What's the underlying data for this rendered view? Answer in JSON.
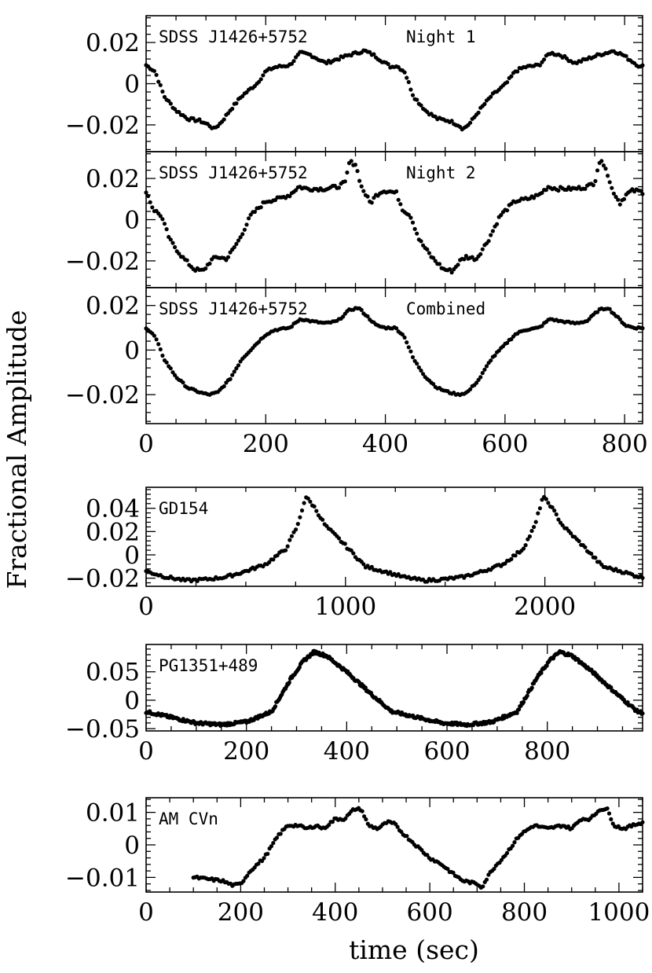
{
  "figure": {
    "ylabel": "Fractional Amplitude",
    "xlabel": "time (sec)"
  },
  "chart_data": [
    {
      "type": "scatter",
      "label_left": "SDSS J1426+5752",
      "label_right": "Night 1",
      "xlim": [
        0,
        830
      ],
      "ylim": [
        -0.033,
        0.033
      ],
      "xticks": [
        0,
        200,
        400,
        600,
        800
      ],
      "yticks": [
        -0.02,
        0,
        0.02
      ],
      "ytick_labels": [
        "−0.02",
        "0",
        "0.02"
      ],
      "show_xtick_labels": false,
      "period": 417,
      "curve": [
        [
          0,
          0.009
        ],
        [
          15,
          0.006
        ],
        [
          30,
          -0.006
        ],
        [
          50,
          -0.013
        ],
        [
          70,
          -0.017
        ],
        [
          90,
          -0.018
        ],
        [
          105,
          -0.02
        ],
        [
          113,
          -0.022
        ],
        [
          125,
          -0.019
        ],
        [
          140,
          -0.013
        ],
        [
          160,
          -0.006
        ],
        [
          185,
          0.0
        ],
        [
          200,
          0.006
        ],
        [
          215,
          0.008
        ],
        [
          240,
          0.009
        ],
        [
          258,
          0.015
        ],
        [
          275,
          0.014
        ],
        [
          300,
          0.01
        ],
        [
          320,
          0.012
        ],
        [
          340,
          0.014
        ],
        [
          365,
          0.016
        ],
        [
          380,
          0.014
        ],
        [
          395,
          0.011
        ],
        [
          410,
          0.008
        ],
        [
          417,
          0.009
        ]
      ],
      "noise": 0.0007
    },
    {
      "type": "scatter",
      "label_left": "SDSS J1426+5752",
      "label_right": "Night 2",
      "xlim": [
        0,
        830
      ],
      "ylim": [
        -0.033,
        0.033
      ],
      "xticks": [
        0,
        200,
        400,
        600,
        800
      ],
      "yticks": [
        -0.02,
        0,
        0.02
      ],
      "ytick_labels": [
        "−0.02",
        "0",
        "0.02"
      ],
      "show_xtick_labels": false,
      "period": 417,
      "curve": [
        [
          0,
          0.014
        ],
        [
          12,
          0.005
        ],
        [
          25,
          0.002
        ],
        [
          40,
          -0.01
        ],
        [
          60,
          -0.018
        ],
        [
          80,
          -0.024
        ],
        [
          95,
          -0.025
        ],
        [
          108,
          -0.02
        ],
        [
          118,
          -0.018
        ],
        [
          135,
          -0.019
        ],
        [
          155,
          -0.01
        ],
        [
          175,
          0.002
        ],
        [
          200,
          0.009
        ],
        [
          220,
          0.01
        ],
        [
          240,
          0.012
        ],
        [
          255,
          0.016
        ],
        [
          270,
          0.015
        ],
        [
          300,
          0.015
        ],
        [
          320,
          0.016
        ],
        [
          333,
          0.018
        ],
        [
          340,
          0.028
        ],
        [
          350,
          0.027
        ],
        [
          360,
          0.016
        ],
        [
          375,
          0.008
        ],
        [
          385,
          0.012
        ],
        [
          395,
          0.014
        ],
        [
          405,
          0.014
        ],
        [
          417,
          0.013
        ]
      ],
      "noise": 0.0009
    },
    {
      "type": "scatter",
      "label_left": "SDSS J1426+5752",
      "label_right": "Combined",
      "xlim": [
        0,
        830
      ],
      "ylim": [
        -0.033,
        0.028
      ],
      "xticks": [
        0,
        200,
        400,
        600,
        800
      ],
      "yticks": [
        -0.02,
        0,
        0.02
      ],
      "ytick_labels": [
        "−0.02",
        "0",
        "0.02"
      ],
      "show_xtick_labels": true,
      "period": 417,
      "curve": [
        [
          0,
          0.01
        ],
        [
          15,
          0.006
        ],
        [
          30,
          -0.004
        ],
        [
          50,
          -0.012
        ],
        [
          70,
          -0.017
        ],
        [
          90,
          -0.019
        ],
        [
          105,
          -0.02
        ],
        [
          120,
          -0.019
        ],
        [
          140,
          -0.013
        ],
        [
          160,
          -0.004
        ],
        [
          185,
          0.003
        ],
        [
          200,
          0.007
        ],
        [
          215,
          0.009
        ],
        [
          240,
          0.01
        ],
        [
          258,
          0.014
        ],
        [
          275,
          0.013
        ],
        [
          300,
          0.012
        ],
        [
          320,
          0.013
        ],
        [
          340,
          0.018
        ],
        [
          355,
          0.019
        ],
        [
          370,
          0.015
        ],
        [
          385,
          0.011
        ],
        [
          400,
          0.01
        ],
        [
          410,
          0.01
        ],
        [
          417,
          0.01
        ]
      ],
      "noise": 0.0004
    },
    {
      "type": "scatter",
      "label_left": "GD154",
      "xlim": [
        0,
        2490
      ],
      "ylim": [
        -0.027,
        0.058
      ],
      "xticks": [
        0,
        1000,
        2000
      ],
      "yticks": [
        -0.02,
        0,
        0.02,
        0.04
      ],
      "ytick_labels": [
        "−0.02",
        "0",
        "0.02",
        "0.04"
      ],
      "show_xtick_labels": true,
      "period": 1190,
      "curve": [
        [
          0,
          -0.014
        ],
        [
          100,
          -0.019
        ],
        [
          200,
          -0.022
        ],
        [
          300,
          -0.021
        ],
        [
          400,
          -0.019
        ],
        [
          500,
          -0.014
        ],
        [
          600,
          -0.008
        ],
        [
          700,
          0.005
        ],
        [
          760,
          0.025
        ],
        [
          800,
          0.05
        ],
        [
          840,
          0.042
        ],
        [
          900,
          0.025
        ],
        [
          1000,
          0.008
        ],
        [
          1100,
          -0.01
        ],
        [
          1190,
          -0.014
        ]
      ],
      "noise": 0.0012
    },
    {
      "type": "scatter",
      "label_left": "PG1351+489",
      "xlim": [
        0,
        990
      ],
      "ylim": [
        -0.054,
        0.098
      ],
      "xticks": [
        0,
        200,
        400,
        600,
        800
      ],
      "yticks": [
        -0.05,
        0,
        0.05
      ],
      "ytick_labels": [
        "−0.05",
        "0",
        "0.05"
      ],
      "show_xtick_labels": true,
      "period": 490,
      "curve": [
        [
          0,
          -0.02
        ],
        [
          50,
          -0.03
        ],
        [
          100,
          -0.04
        ],
        [
          150,
          -0.043
        ],
        [
          200,
          -0.038
        ],
        [
          250,
          -0.02
        ],
        [
          290,
          0.04
        ],
        [
          315,
          0.07
        ],
        [
          335,
          0.085
        ],
        [
          360,
          0.078
        ],
        [
          400,
          0.05
        ],
        [
          450,
          0.01
        ],
        [
          490,
          -0.02
        ]
      ],
      "noise": 0.0025,
      "density": 2.2
    },
    {
      "type": "scatter",
      "label_left": "AM CVn",
      "xlim": [
        0,
        1050
      ],
      "ylim": [
        -0.0145,
        0.0145
      ],
      "xticks": [
        0,
        200,
        400,
        600,
        800,
        1000
      ],
      "yticks": [
        -0.01,
        0,
        0.01
      ],
      "ytick_labels": [
        "−0.01",
        "0",
        "0.01"
      ],
      "show_xtick_labels": true,
      "period": 525,
      "curve": [
        [
          100,
          -0.01
        ],
        [
          130,
          -0.0105
        ],
        [
          160,
          -0.011
        ],
        [
          185,
          -0.0125
        ],
        [
          200,
          -0.012
        ],
        [
          220,
          -0.008
        ],
        [
          250,
          -0.004
        ],
        [
          280,
          0.003
        ],
        [
          300,
          0.006
        ],
        [
          320,
          0.006
        ],
        [
          340,
          0.005
        ],
        [
          360,
          0.006
        ],
        [
          375,
          0.005
        ],
        [
          400,
          0.008
        ],
        [
          420,
          0.008
        ],
        [
          440,
          0.011
        ],
        [
          455,
          0.011
        ],
        [
          470,
          0.006
        ],
        [
          490,
          0.005
        ],
        [
          510,
          0.007
        ],
        [
          525,
          0.0065
        ],
        [
          540,
          0.004
        ],
        [
          570,
          0.0
        ],
        [
          600,
          -0.004
        ],
        [
          625,
          -0.006
        ],
        [
          650,
          -0.009
        ],
        [
          670,
          -0.011
        ],
        [
          700,
          -0.012
        ],
        [
          710,
          -0.013
        ],
        [
          730,
          -0.008
        ],
        [
          760,
          -0.003
        ],
        [
          790,
          0.003
        ],
        [
          820,
          0.006
        ],
        [
          850,
          0.005
        ],
        [
          880,
          0.006
        ],
        [
          900,
          0.005
        ],
        [
          920,
          0.008
        ],
        [
          940,
          0.008
        ],
        [
          960,
          0.011
        ],
        [
          975,
          0.011
        ],
        [
          990,
          0.006
        ],
        [
          1010,
          0.005
        ],
        [
          1030,
          0.006
        ],
        [
          1050,
          0.007
        ]
      ],
      "noise": 0.0004,
      "explicit": true
    }
  ]
}
